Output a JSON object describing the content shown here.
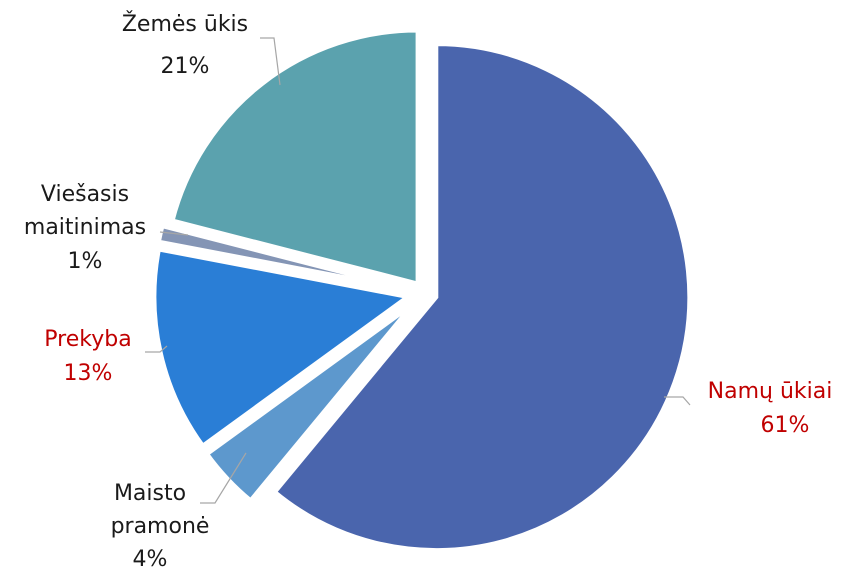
{
  "chart_data": {
    "type": "pie",
    "slices": [
      {
        "label": "Namų ūkiai",
        "value": 61,
        "value_label": "61%",
        "color": "#4a65ad",
        "label_color": "#c00000"
      },
      {
        "label": "Maisto pramonė",
        "value": 4,
        "value_label": "4%",
        "color": "#5d98cd",
        "label_color": "#1a1a1a"
      },
      {
        "label": "Prekyba",
        "value": 13,
        "value_label": "13%",
        "color": "#2a7ed6",
        "label_color": "#c00000"
      },
      {
        "label": "Viešasis maitinimas",
        "value": 1,
        "value_label": "1%",
        "color": "#8495b5",
        "label_color": "#1a1a1a"
      },
      {
        "label": "Žemės ūkis",
        "value": 21,
        "value_label": "21%",
        "color": "#5ba2ae",
        "label_color": "#1a1a1a"
      }
    ],
    "legend": "none",
    "data_labels": "outside-with-leader-lines"
  }
}
